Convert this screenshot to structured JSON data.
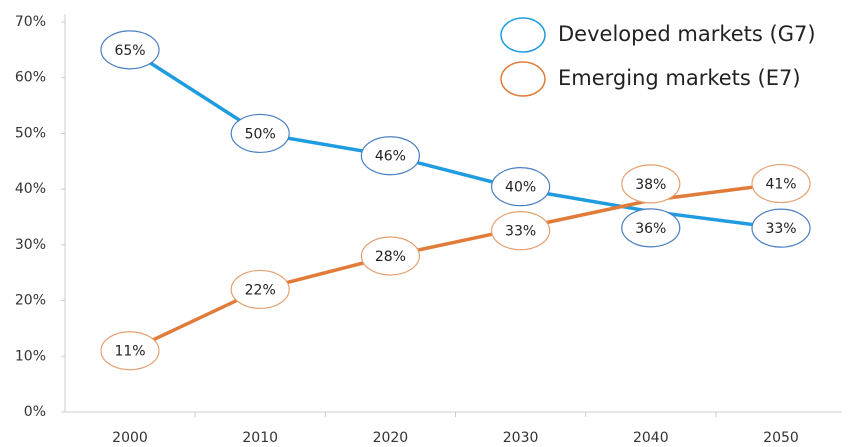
{
  "chart_data": {
    "type": "line",
    "categories": [
      "2000",
      "2010",
      "2020",
      "2030",
      "2040",
      "2050"
    ],
    "series": [
      {
        "name": "Developed markets (G7)",
        "color": "#1f9be0",
        "label_color": "#4a7fc1",
        "values": [
          65,
          50,
          46,
          40,
          36,
          33
        ],
        "value_labels": [
          "65%",
          "50%",
          "46%",
          "40%",
          "36%",
          "33%"
        ]
      },
      {
        "name": "Emerging markets (E7)",
        "color": "#e07b39",
        "label_color": "#e3a070",
        "values": [
          11,
          22,
          28,
          33,
          38,
          41
        ],
        "value_labels": [
          "11%",
          "22%",
          "28%",
          "33%",
          "38%",
          "41%"
        ]
      }
    ],
    "ylim": [
      0,
      70
    ],
    "yticks": [
      {
        "value": 0,
        "label": "0%"
      },
      {
        "value": 10,
        "label": "10%"
      },
      {
        "value": 20,
        "label": "20%"
      },
      {
        "value": 30,
        "label": "30%"
      },
      {
        "value": 40,
        "label": "40%"
      },
      {
        "value": 50,
        "label": "50%"
      },
      {
        "value": 60,
        "label": "60%"
      },
      {
        "value": 70,
        "label": "70%"
      }
    ],
    "grid": false,
    "legend": "top-right"
  }
}
